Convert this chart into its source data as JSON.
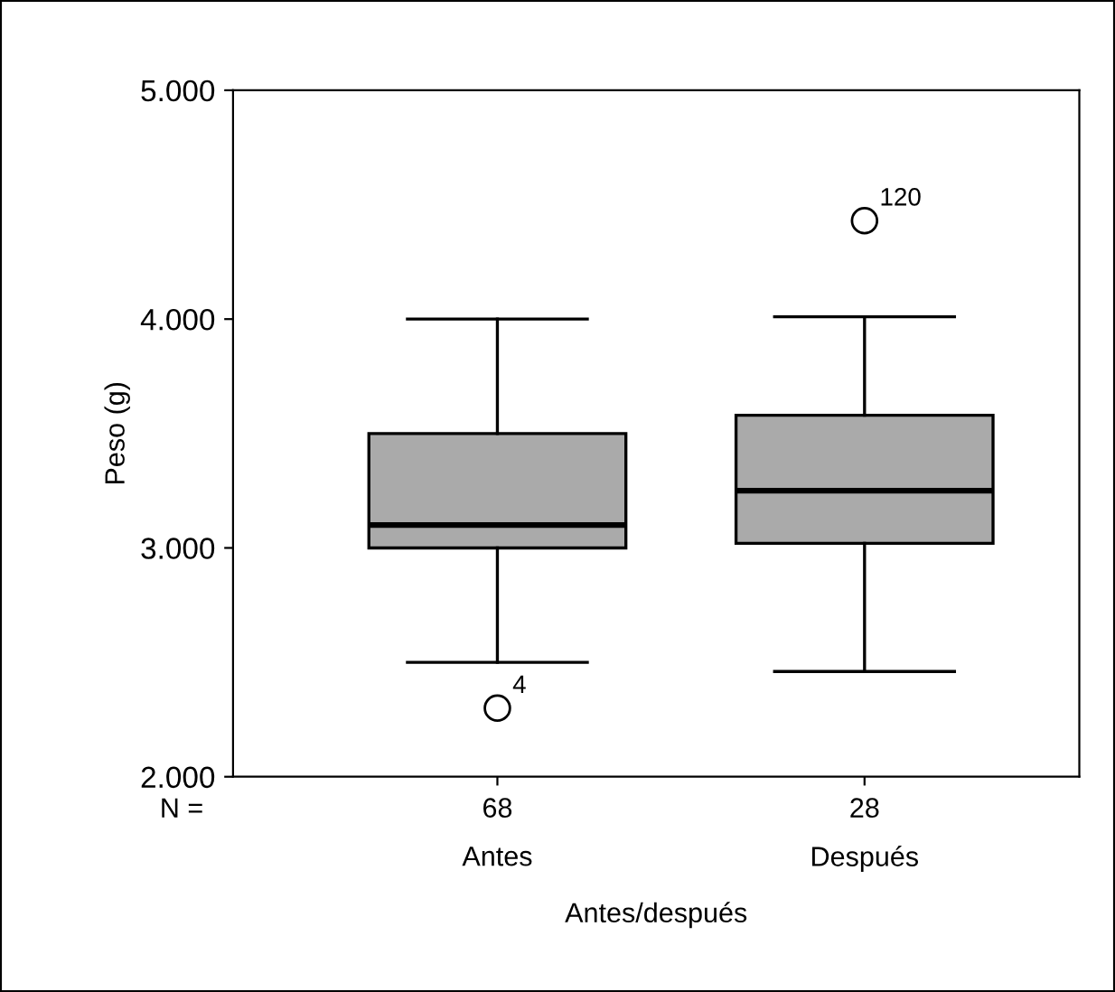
{
  "chart_data": {
    "type": "box",
    "xlabel": "Antes/después",
    "ylabel": "Peso (g)",
    "categories": [
      "Antes",
      "Después"
    ],
    "boxes": [
      {
        "low": 2500,
        "q1": 3000,
        "median": 3100,
        "q3": 3500,
        "high": 4000,
        "outliers": [
          2300
        ]
      },
      {
        "low": 2460,
        "q1": 3020,
        "median": 3250,
        "q3": 3580,
        "high": 4010,
        "outliers": [
          4430
        ]
      }
    ],
    "color": "#aaaaaa",
    "ylim": [
      2000,
      5000
    ],
    "yticks": [
      {
        "value": 2000,
        "label": "2.000"
      },
      {
        "value": 3000,
        "label": "3.000"
      },
      {
        "value": 4000,
        "label": "4.000"
      },
      {
        "value": 5000,
        "label": "5.000"
      }
    ],
    "grid": false,
    "legend": false,
    "annotations": [
      "N =",
      "68",
      "28",
      "4",
      "120"
    ]
  }
}
